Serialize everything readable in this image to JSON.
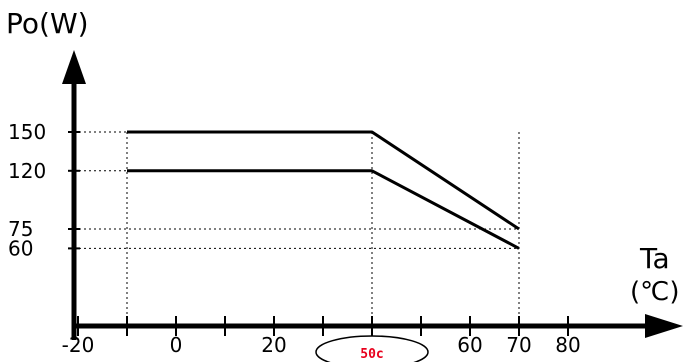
{
  "chart_data": {
    "type": "line",
    "ylabel": "Po(W)",
    "xlabel": "Ta",
    "xunit": "(℃)",
    "x_ticks": [
      -20,
      0,
      20,
      40,
      60,
      70,
      80
    ],
    "x_tick_labels": [
      "-20",
      "0",
      "20",
      "",
      "60",
      "70",
      "80"
    ],
    "y_ticks": [
      60,
      75,
      120,
      150
    ],
    "y_tick_labels": [
      "60",
      "75",
      "120",
      "150"
    ],
    "xlim": [
      -20,
      80
    ],
    "ylim": [
      0,
      165
    ],
    "series": [
      {
        "x": [
          -10,
          40,
          70
        ],
        "values": [
          150,
          150,
          75
        ]
      },
      {
        "x": [
          -10,
          40,
          70
        ],
        "values": [
          120,
          120,
          60
        ]
      }
    ],
    "guides": {
      "vertical": [
        -10,
        40,
        70
      ],
      "horizontal": [
        150,
        120,
        75,
        60
      ]
    },
    "annotations": [
      {
        "text": "50c",
        "x": 40,
        "color": "#e8001c"
      }
    ]
  }
}
